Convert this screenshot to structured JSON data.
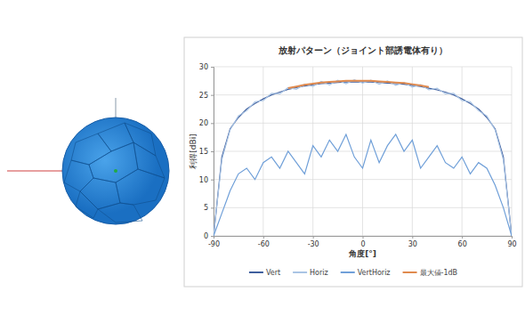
{
  "chart_data": {
    "type": "line",
    "title": "放射パターン（ジョイント部誘電体有り）",
    "x_label": "角度[°]",
    "y_label": "利得[dBi]",
    "x": [
      -90,
      -85,
      -80,
      -75,
      -70,
      -65,
      -60,
      -55,
      -50,
      -45,
      -40,
      -35,
      -30,
      -25,
      -20,
      -15,
      -10,
      -5,
      0,
      5,
      10,
      15,
      20,
      25,
      30,
      35,
      40,
      45,
      50,
      55,
      60,
      65,
      70,
      75,
      80,
      85,
      90
    ],
    "series": [
      {
        "name": "Vert",
        "color": "#3f5f9e",
        "line_style": "solid",
        "values": [
          0,
          14,
          19,
          21,
          22.5,
          23.5,
          24.3,
          25,
          25.5,
          26,
          26.3,
          26.6,
          26.8,
          27,
          27.1,
          27.2,
          27.3,
          27.3,
          27.3,
          27.3,
          27.2,
          27.1,
          27,
          26.9,
          26.7,
          26.5,
          26.2,
          25.9,
          25.5,
          25,
          24.3,
          23.5,
          22.5,
          21,
          19,
          14,
          0
        ]
      },
      {
        "name": "Horiz",
        "color": "#a9c4e4",
        "line_style": "solid",
        "values": [
          0,
          13.5,
          18.8,
          21.3,
          22.2,
          23.8,
          24,
          25.3,
          25.2,
          26.3,
          26,
          26.9,
          26.5,
          27.4,
          26.8,
          27.6,
          27,
          27.7,
          27.1,
          27.6,
          26.9,
          27.5,
          26.7,
          27.2,
          26.4,
          26.8,
          25.9,
          26.2,
          25.2,
          25.3,
          24,
          23.8,
          22.2,
          21.3,
          18.8,
          13.5,
          0
        ]
      },
      {
        "name": "VertHoriz",
        "color": "#6f9fd8",
        "line_style": "solid",
        "values": [
          0,
          4,
          8,
          11,
          12,
          10,
          13,
          14,
          12,
          15,
          13,
          11,
          16,
          14,
          17,
          15,
          18,
          14,
          12,
          17,
          13,
          16,
          18,
          15,
          17,
          12,
          14,
          16,
          13,
          12,
          14,
          11,
          13,
          12,
          9,
          5,
          0
        ]
      },
      {
        "name": "最大値-1dB",
        "color": "#e08a4e",
        "line_style": "solid",
        "values": [
          null,
          null,
          null,
          null,
          null,
          null,
          null,
          null,
          null,
          26.2,
          26.5,
          26.8,
          27,
          27.2,
          27.3,
          27.4,
          27.5,
          27.5,
          27.5,
          27.5,
          27.4,
          27.3,
          27.2,
          27.1,
          26.9,
          26.7,
          26.4,
          null,
          null,
          null,
          null,
          null,
          null,
          null,
          null,
          null,
          null
        ]
      }
    ],
    "xlim": [
      -90,
      90
    ],
    "xticks": [
      -90,
      -60,
      -30,
      0,
      30,
      60,
      90
    ],
    "ylim": [
      0,
      30
    ],
    "yticks": [
      0,
      5,
      10,
      15,
      20,
      25,
      30
    ],
    "grid": true,
    "legend": "bottom"
  }
}
